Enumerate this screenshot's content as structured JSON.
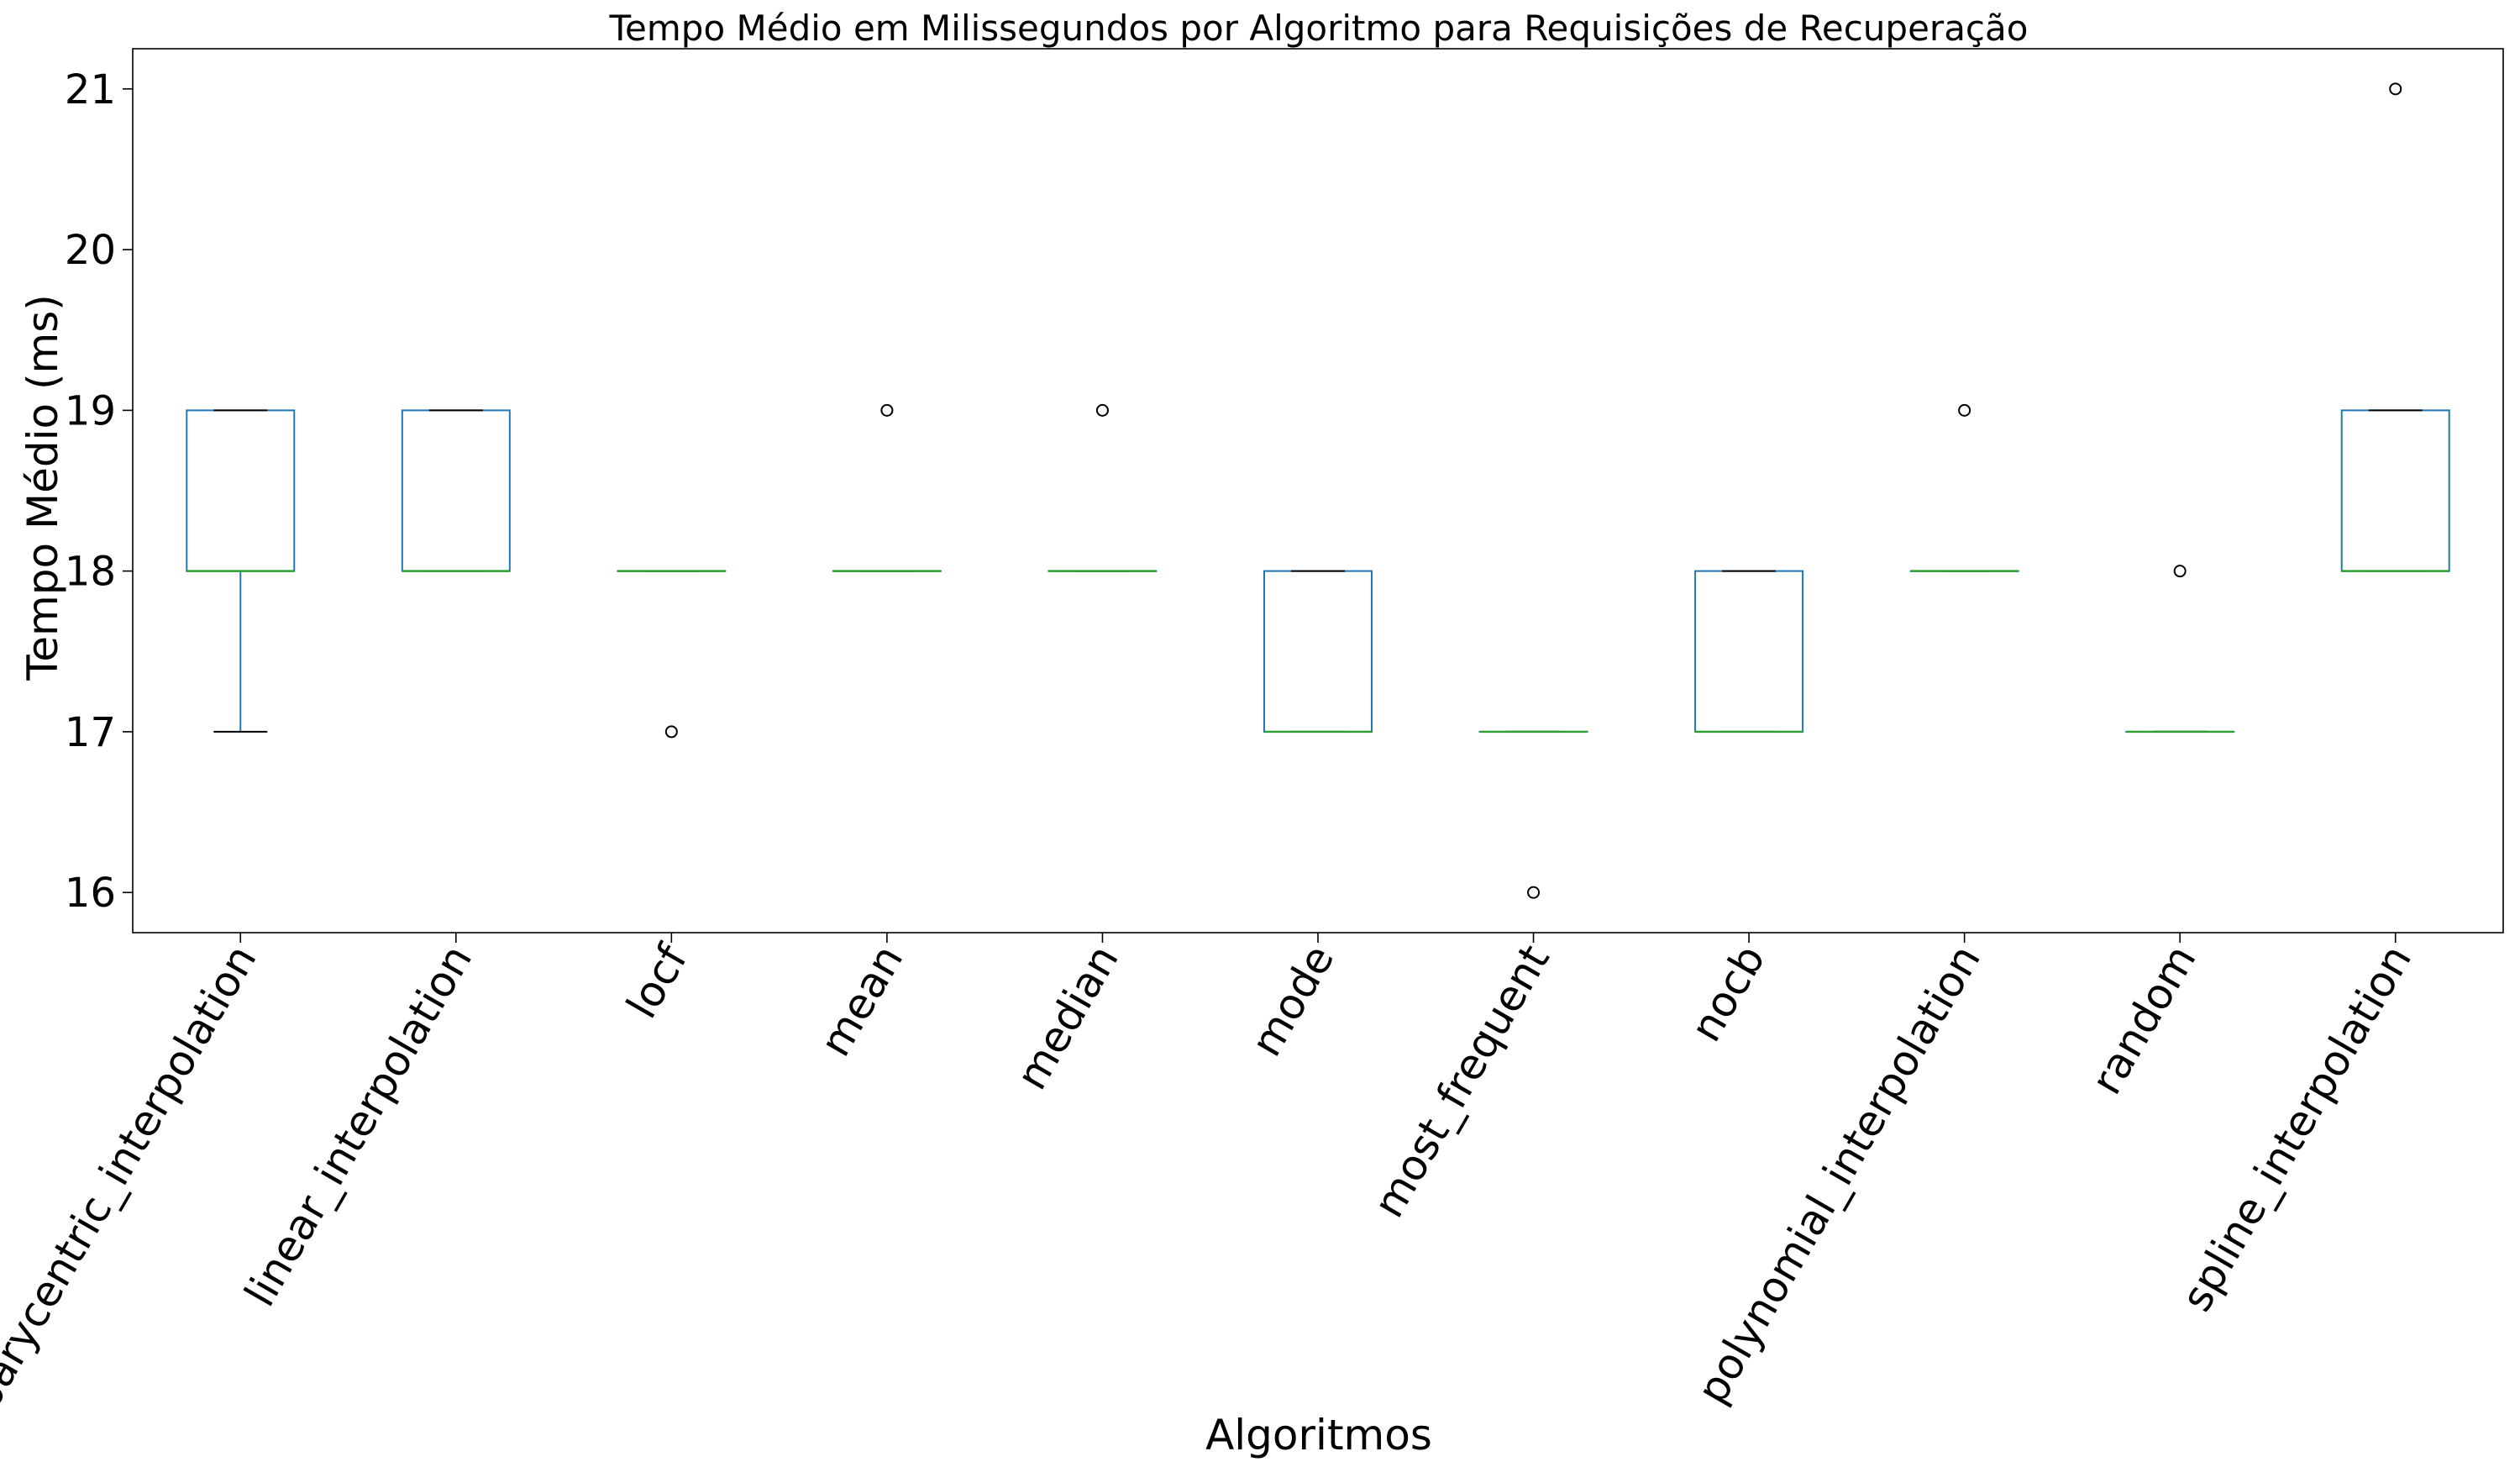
{
  "chart_data": {
    "type": "boxplot",
    "title": "Tempo Médio em Milissegundos por Algoritmo para Requisições de Recuperação",
    "xlabel": "Algoritmos",
    "ylabel": "Tempo Médio (ms)",
    "ylim": [
      15.75,
      21.25
    ],
    "yticks": [
      16,
      17,
      18,
      19,
      20,
      21
    ],
    "grid": false,
    "legend": "none",
    "colors": {
      "box": "#1f77b4",
      "median": "#2ca02c",
      "whisker": "#1f77b4",
      "cap": "#000000",
      "flier": "#000000"
    },
    "categories": [
      "barycentric_interpolation",
      "linear_interpolation",
      "locf",
      "mean",
      "median",
      "mode",
      "most_frequent",
      "nocb",
      "polynomial_interpolation",
      "random",
      "spline_interpolation"
    ],
    "boxes": [
      {
        "name": "barycentric_interpolation",
        "whislo": 17,
        "q1": 18,
        "med": 18,
        "q3": 19,
        "whishi": 19,
        "fliers": []
      },
      {
        "name": "linear_interpolation",
        "whislo": 18,
        "q1": 18,
        "med": 18,
        "q3": 19,
        "whishi": 19,
        "fliers": []
      },
      {
        "name": "locf",
        "whislo": 18,
        "q1": 18,
        "med": 18,
        "q3": 18,
        "whishi": 18,
        "fliers": [
          17
        ]
      },
      {
        "name": "mean",
        "whislo": 18,
        "q1": 18,
        "med": 18,
        "q3": 18,
        "whishi": 18,
        "fliers": [
          19
        ]
      },
      {
        "name": "median",
        "whislo": 18,
        "q1": 18,
        "med": 18,
        "q3": 18,
        "whishi": 18,
        "fliers": [
          19
        ]
      },
      {
        "name": "mode",
        "whislo": 17,
        "q1": 17,
        "med": 17,
        "q3": 18,
        "whishi": 18,
        "fliers": []
      },
      {
        "name": "most_frequent",
        "whislo": 17,
        "q1": 17,
        "med": 17,
        "q3": 17,
        "whishi": 17,
        "fliers": [
          16
        ]
      },
      {
        "name": "nocb",
        "whislo": 17,
        "q1": 17,
        "med": 17,
        "q3": 18,
        "whishi": 18,
        "fliers": []
      },
      {
        "name": "polynomial_interpolation",
        "whislo": 18,
        "q1": 18,
        "med": 18,
        "q3": 18,
        "whishi": 18,
        "fliers": [
          19
        ]
      },
      {
        "name": "random",
        "whislo": 17,
        "q1": 17,
        "med": 17,
        "q3": 17,
        "whishi": 17,
        "fliers": [
          18
        ]
      },
      {
        "name": "spline_interpolation",
        "whislo": 18,
        "q1": 18,
        "med": 18,
        "q3": 19,
        "whishi": 19,
        "fliers": [
          21
        ]
      }
    ]
  }
}
